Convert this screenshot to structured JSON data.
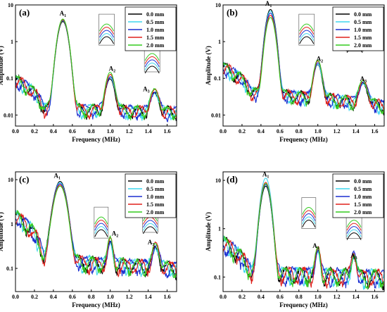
{
  "colors": {
    "0.0 mm": "#000000",
    "0.5 mm": "#3fd6ee",
    "1.0 mm": "#1b2fd0",
    "1.5 mm": "#e0201b",
    "2.0 mm": "#33cc1f"
  },
  "chart_data": [
    {
      "type": "line",
      "panel_label": "(a)",
      "xlabel": "Frequency (MHz)",
      "ylabel": "Amplitude (V)",
      "xlim": [
        0.0,
        1.7
      ],
      "ylim": [
        0.005,
        10
      ],
      "yscale": "log",
      "xticks": [
        "0.0",
        "0.2",
        "0.4",
        "0.6",
        "0.8",
        "1.0",
        "1.2",
        "1.4",
        "1.6"
      ],
      "yticks": [
        "0.01",
        "0.1",
        "1",
        "10"
      ],
      "ytick_values": [
        0.01,
        0.1,
        1,
        10
      ],
      "legend": [
        "0.0 mm",
        "0.5 mm",
        "1.0 mm",
        "1.5 mm",
        "2.0 mm"
      ],
      "legend_position": "top-right",
      "peak_labels": [
        {
          "text": "A1",
          "x": 0.5,
          "y": 5.2
        },
        {
          "text": "A2",
          "x": 1.02,
          "y": 0.16
        },
        {
          "text": "A3",
          "x": 1.38,
          "y": 0.045
        }
      ],
      "peaks": {
        "A1": {
          "x": 0.5,
          "w": 0.055,
          "values": [
            3.5,
            3.7,
            3.8,
            3.9,
            4.1
          ]
        },
        "A2": {
          "x": 1.0,
          "w": 0.05,
          "values": [
            0.08,
            0.095,
            0.1,
            0.11,
            0.13
          ]
        },
        "A3": {
          "x": 1.47,
          "w": 0.05,
          "values": [
            0.025,
            0.028,
            0.032,
            0.034,
            0.037
          ]
        }
      },
      "baseline": [
        0.09,
        0.015,
        0.012
      ]
    },
    {
      "type": "line",
      "panel_label": "(b)",
      "xlabel": "Frequency (MHz)",
      "ylabel": "Amplitude (V)",
      "xlim": [
        0.0,
        1.7
      ],
      "ylim": [
        0.005,
        10
      ],
      "yscale": "log",
      "xticks": [
        "0.0",
        "0.2",
        "0.4",
        "0.6",
        "0.8",
        "1.0",
        "1.2",
        "1.4",
        "1.6"
      ],
      "yticks": [
        "0.01",
        "0.1",
        "1",
        "10"
      ],
      "ytick_values": [
        0.01,
        0.1,
        1,
        10
      ],
      "legend": [
        "0.0 mm",
        "0.5 mm",
        "1.0 mm",
        "1.5 mm",
        "2.0 mm"
      ],
      "legend_position": "top-right",
      "peak_labels": [
        {
          "text": "A1",
          "x": 0.48,
          "y": 9.5
        },
        {
          "text": "A2",
          "x": 1.02,
          "y": 0.3
        },
        {
          "text": "A3",
          "x": 1.48,
          "y": 0.085
        }
      ],
      "peaks": {
        "A1": {
          "x": 0.5,
          "w": 0.05,
          "values": [
            7.5,
            6.8,
            6.0,
            5.2,
            4.5
          ]
        },
        "A2": {
          "x": 1.0,
          "w": 0.045,
          "values": [
            0.2,
            0.22,
            0.24,
            0.26,
            0.28
          ]
        },
        "A3": {
          "x": 1.48,
          "w": 0.05,
          "values": [
            0.05,
            0.055,
            0.06,
            0.06,
            0.065
          ]
        }
      },
      "baseline": [
        0.2,
        0.04,
        0.018
      ]
    },
    {
      "type": "line",
      "panel_label": "(c)",
      "xlabel": "Frequency (MHz)",
      "ylabel": "Amplitude (V)",
      "xlim": [
        0.0,
        1.7
      ],
      "ylim": [
        0.03,
        15
      ],
      "yscale": "log",
      "xticks": [
        "0.0",
        "0.2",
        "0.4",
        "0.6",
        "0.8",
        "1.0",
        "1.2",
        "1.4",
        "1.6"
      ],
      "yticks": [
        "0.1",
        "1",
        "10"
      ],
      "ytick_values": [
        0.1,
        1,
        10
      ],
      "legend": [
        "0.0 mm",
        "0.5 mm",
        "1.0 mm",
        "1.5 mm",
        "2.0 mm"
      ],
      "legend_position": "top-right",
      "peak_labels": [
        {
          "text": "A1",
          "x": 0.44,
          "y": 11
        },
        {
          "text": "A2",
          "x": 1.05,
          "y": 0.55
        },
        {
          "text": "A3",
          "x": 1.43,
          "y": 0.35
        }
      ],
      "peaks": {
        "A1": {
          "x": 0.47,
          "w": 0.07,
          "values": [
            9.0,
            8.5,
            8.0,
            7.5,
            7.0
          ]
        },
        "A2": {
          "x": 1.0,
          "w": 0.03,
          "values": [
            0.25,
            0.28,
            0.3,
            0.33,
            0.38
          ]
        },
        "A3": {
          "x": 1.48,
          "w": 0.04,
          "values": [
            0.18,
            0.2,
            0.22,
            0.24,
            0.26
          ]
        }
      },
      "baseline": [
        1.5,
        0.15,
        0.1
      ]
    },
    {
      "type": "line",
      "panel_label": "(d)",
      "xlabel": "Frequency (MHz)",
      "ylabel": "Amplitude (V)",
      "xlim": [
        0.0,
        1.7
      ],
      "ylim": [
        0.05,
        15
      ],
      "yscale": "log",
      "xticks": [
        "0.0",
        "0.2",
        "0.4",
        "0.6",
        "0.8",
        "1.0",
        "1.2",
        "1.4",
        "1.6"
      ],
      "yticks": [
        "0.1",
        "1",
        "10"
      ],
      "ytick_values": [
        0.1,
        1,
        10
      ],
      "legend": [
        "0.0 mm",
        "0.5 mm",
        "1.0 mm",
        "1.5 mm",
        "2.0 mm"
      ],
      "legend_position": "top-right",
      "peak_labels": [
        {
          "text": "A1",
          "x": 0.45,
          "y": 12
        },
        {
          "text": "A2",
          "x": 0.98,
          "y": 0.4
        },
        {
          "text": "A3",
          "x": 1.38,
          "y": 0.25
        }
      ],
      "peaks": {
        "A1": {
          "x": 0.45,
          "w": 0.055,
          "values": [
            7.5,
            11.0,
            8.0,
            9.0,
            8.5
          ]
        },
        "A2": {
          "x": 1.0,
          "w": 0.03,
          "values": [
            0.22,
            0.25,
            0.27,
            0.28,
            0.3
          ]
        },
        "A3": {
          "x": 1.38,
          "w": 0.03,
          "values": [
            0.18,
            0.15,
            0.2,
            0.22,
            0.2
          ]
        }
      },
      "baseline": [
        0.5,
        0.12,
        0.1
      ]
    }
  ]
}
